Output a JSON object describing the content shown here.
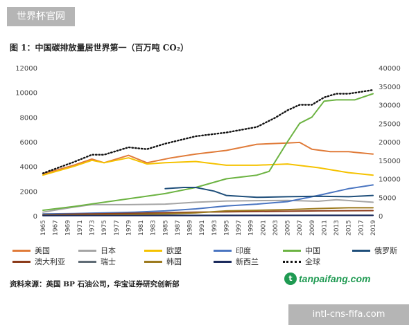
{
  "watermark_top": "世界杯官网",
  "watermark_bottom": "intl-cns-fifa.com",
  "title": "图 1：中国碳排放量居世界第一（百万吨 CO₂）",
  "source": "资料来源：英国 BP 石油公司，华宝证券研究创新部",
  "logo": {
    "icon": "t",
    "text": "tanpaifang.com"
  },
  "colors": {
    "美国": "#e07b39",
    "日本": "#a5a5a5",
    "欧盟": "#f5c200",
    "印度": "#4a75c1",
    "中国": "#6cb342",
    "俄罗斯": "#1e4e7a",
    "澳大利亚": "#8b3a1a",
    "瑞士": "#5f6b75",
    "韩国": "#9c7a1e",
    "新西兰": "#1b2a5c",
    "全球": "#111111"
  },
  "chart_data": {
    "type": "line",
    "title": "图 1：中国碳排放量居世界第一（百万吨 CO₂）",
    "x_tick_labels": [
      "1965",
      "1967",
      "1969",
      "1971",
      "1973",
      "1975",
      "1977",
      "1979",
      "1981",
      "1983",
      "1985",
      "1987",
      "1989",
      "1991",
      "1993",
      "1995",
      "1997",
      "1999",
      "2001",
      "2003",
      "2005",
      "2007",
      "2009",
      "2011",
      "2013",
      "2015",
      "2017",
      "2019"
    ],
    "y_left": {
      "min": 0,
      "max": 12000,
      "ticks": [
        "0",
        "2000",
        "4000",
        "6000",
        "8000",
        "10000",
        "12000"
      ]
    },
    "y_right": {
      "min": 0,
      "max": 40000,
      "ticks": [
        "0",
        "5000",
        "10000",
        "15000",
        "20000",
        "25000",
        "30000",
        "35000",
        "40000"
      ]
    },
    "grid": false,
    "legend_position": "bottom",
    "series": [
      {
        "name": "美国",
        "axis": "left",
        "x": [
          1965,
          1970,
          1973,
          1975,
          1979,
          1982,
          1986,
          1990,
          1995,
          2000,
          2005,
          2007,
          2009,
          2012,
          2015,
          2019
        ],
        "values": [
          3400,
          4100,
          4600,
          4300,
          4900,
          4300,
          4700,
          5000,
          5300,
          5800,
          5900,
          5950,
          5400,
          5200,
          5200,
          5000
        ]
      },
      {
        "name": "日本",
        "axis": "left",
        "x": [
          1965,
          1970,
          1973,
          1979,
          1985,
          1990,
          1995,
          2000,
          2005,
          2010,
          2013,
          2019
        ],
        "values": [
          300,
          700,
          900,
          900,
          950,
          1100,
          1200,
          1230,
          1250,
          1180,
          1300,
          1100
        ]
      },
      {
        "name": "欧盟",
        "axis": "left",
        "x": [
          1965,
          1970,
          1973,
          1975,
          1979,
          1982,
          1985,
          1990,
          1995,
          2000,
          2005,
          2010,
          2015,
          2019
        ],
        "values": [
          3300,
          4000,
          4500,
          4300,
          4700,
          4200,
          4300,
          4400,
          4100,
          4100,
          4200,
          3900,
          3500,
          3300
        ]
      },
      {
        "name": "印度",
        "axis": "left",
        "x": [
          1965,
          1970,
          1975,
          1980,
          1985,
          1990,
          1995,
          2000,
          2005,
          2010,
          2015,
          2019
        ],
        "values": [
          150,
          180,
          240,
          300,
          400,
          560,
          800,
          950,
          1150,
          1650,
          2200,
          2500
        ]
      },
      {
        "name": "中国",
        "axis": "left",
        "x": [
          1965,
          1970,
          1975,
          1980,
          1985,
          1990,
          1995,
          2000,
          2002,
          2005,
          2007,
          2009,
          2011,
          2013,
          2016,
          2019
        ],
        "values": [
          450,
          750,
          1100,
          1450,
          1800,
          2300,
          3000,
          3300,
          3600,
          6000,
          7500,
          8000,
          9300,
          9400,
          9400,
          9900
        ]
      },
      {
        "name": "俄罗斯",
        "axis": "left",
        "x": [
          1985,
          1988,
          1990,
          1993,
          1995,
          2000,
          2005,
          2010,
          2015,
          2019
        ],
        "values": [
          2200,
          2300,
          2300,
          2000,
          1650,
          1500,
          1550,
          1580,
          1550,
          1650
        ]
      },
      {
        "name": "澳大利亚",
        "axis": "left",
        "x": [
          1965,
          1980,
          1990,
          2000,
          2010,
          2019
        ],
        "values": [
          100,
          200,
          300,
          350,
          400,
          420
        ]
      },
      {
        "name": "瑞士",
        "axis": "left",
        "x": [
          1965,
          1980,
          1990,
          2000,
          2010,
          2019
        ],
        "values": [
          60,
          50,
          45,
          45,
          45,
          40
        ]
      },
      {
        "name": "韩国",
        "axis": "left",
        "x": [
          1965,
          1975,
          1985,
          1990,
          1995,
          2000,
          2005,
          2010,
          2015,
          2019
        ],
        "values": [
          30,
          80,
          160,
          240,
          400,
          450,
          500,
          590,
          650,
          650
        ]
      },
      {
        "name": "新西兰",
        "axis": "left",
        "x": [
          1965,
          1980,
          1990,
          2000,
          2010,
          2019
        ],
        "values": [
          15,
          20,
          25,
          30,
          35,
          35
        ]
      },
      {
        "name": "全球",
        "axis": "right",
        "x": [
          1965,
          1970,
          1973,
          1975,
          1979,
          1982,
          1985,
          1990,
          1995,
          2000,
          2003,
          2005,
          2007,
          2009,
          2011,
          2013,
          2015,
          2017,
          2019
        ],
        "values": [
          11500,
          14500,
          16500,
          16500,
          18500,
          18000,
          19500,
          21500,
          22500,
          24000,
          26500,
          28500,
          30000,
          30000,
          32000,
          33000,
          33000,
          33500,
          34000
        ]
      }
    ]
  }
}
